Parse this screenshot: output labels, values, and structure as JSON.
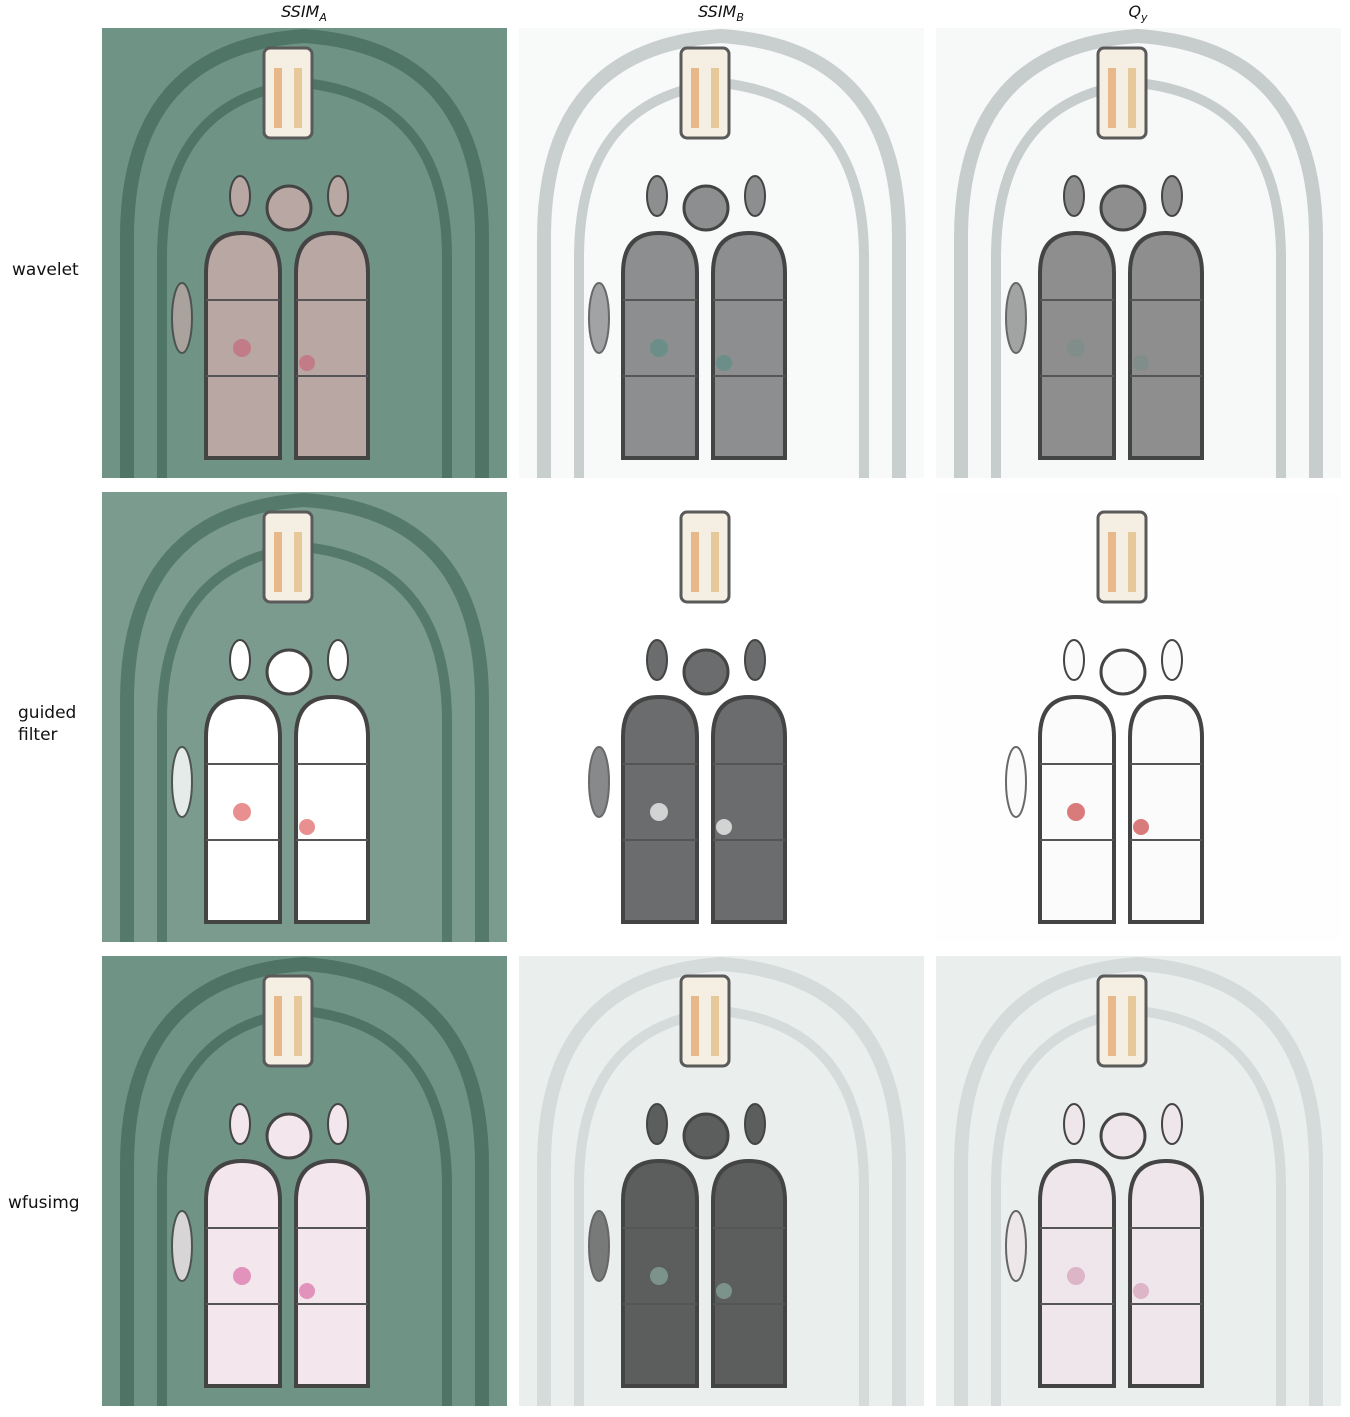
{
  "columns": [
    {
      "base": "SSIM",
      "sub": "A"
    },
    {
      "base": "SSIM",
      "sub": "B"
    },
    {
      "base": "Q",
      "sub": "y"
    }
  ],
  "rows": [
    {
      "label_lines": [
        "wavelet"
      ]
    },
    {
      "label_lines": [
        "guided",
        "filter"
      ]
    },
    {
      "label_lines": [
        "wfusimg"
      ]
    }
  ],
  "panel_styles": {
    "0": {
      "bg": "#6f9485",
      "arch": "#4f7566",
      "window": "#b9a7a3",
      "glass": "#c46a7a"
    },
    "1": {
      "bg": "#f8f9f9",
      "arch": "#c9cfcf",
      "window": "#8c8e8f",
      "glass": "#5e8f86"
    },
    "2": {
      "bg": "#f7f9f9",
      "arch": "#c7cdcd",
      "window": "#8e8e8e",
      "glass": "#7a8d89"
    },
    "3": {
      "bg": "#7b9b8e",
      "arch": "#557a6b",
      "window": "#ffffff",
      "glass": "#e06060"
    },
    "4": {
      "bg": "#ffffff",
      "arch": "#ffffff",
      "window": "#6a6c6d",
      "glass": "#ffffff"
    },
    "5": {
      "bg": "#fefefe",
      "arch": "#fefefe",
      "window": "#fbfbfb",
      "glass": "#c44"
    },
    "6": {
      "bg": "#6f9486",
      "arch": "#4f7466",
      "window": "#f3e6ec",
      "glass": "#d86fa6"
    },
    "7": {
      "bg": "#eaefee",
      "arch": "#d5dbda",
      "window": "#5c5e5e",
      "glass": "#8aaaa0"
    },
    "8": {
      "bg": "#eaefee",
      "arch": "#d5dbda",
      "window": "#eee6ea",
      "glass": "#d4a0b8"
    }
  }
}
